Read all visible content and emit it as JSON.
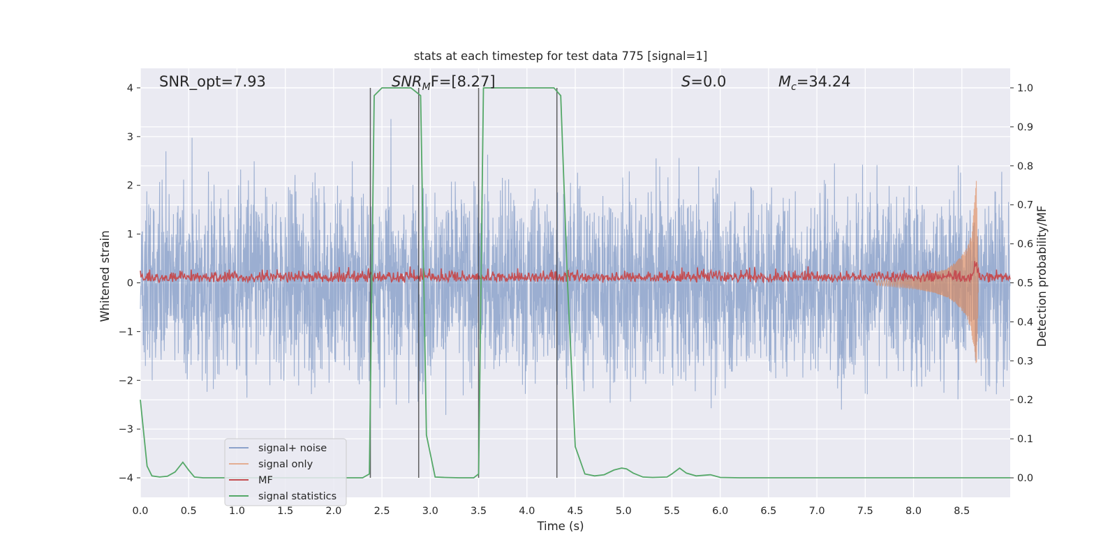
{
  "chart_data": {
    "type": "line",
    "title": "stats at each timestep for test data 775 [signal=1]",
    "xlabel": "Time (s)",
    "ylabel_left": "Whitened strain",
    "ylabel_right": "Detection probability/MF",
    "xlim": [
      0,
      9
    ],
    "ylim_left": [
      -4.4,
      4.4
    ],
    "ylim_right": [
      -0.05,
      1.05
    ],
    "x_ticks": [
      "0.0",
      "0.5",
      "1.0",
      "1.5",
      "2.0",
      "2.5",
      "3.0",
      "3.5",
      "4.0",
      "4.5",
      "5.0",
      "5.5",
      "6.0",
      "6.5",
      "7.0",
      "7.5",
      "8.0",
      "8.5"
    ],
    "y_left_ticks": [
      "4",
      "3",
      "2",
      "1",
      "0",
      "−1",
      "−2",
      "−3",
      "−4"
    ],
    "y_right_ticks": [
      "1.0",
      "0.9",
      "0.8",
      "0.7",
      "0.6",
      "0.5",
      "0.4",
      "0.3",
      "0.2",
      "0.1",
      "0.0"
    ],
    "annotations": {
      "snr_opt": "SNR_opt=7.93",
      "snr_mf_main": "SNR",
      "snr_mf_sub": "M",
      "snr_mf_rest": "F=[8.27]",
      "s_main": "S",
      "s_rest": "=0.0",
      "mc_main": "M",
      "mc_sub": "c",
      "mc_rest": "=34.24"
    },
    "grid": true,
    "legend_placement": "lower-left",
    "series": [
      {
        "name": "signal+ noise",
        "color": "#4c72b0",
        "description_values": "whitened strain, approximately within ±3.5"
      },
      {
        "name": "signal only",
        "color": "#dd8452",
        "x": [
          7.6,
          7.8,
          8.0,
          8.2,
          8.35,
          8.45,
          8.55,
          8.6,
          8.63,
          8.65,
          8.67
        ],
        "amp": [
          0.05,
          0.08,
          0.12,
          0.2,
          0.3,
          0.45,
          0.7,
          1.0,
          1.6,
          2.1,
          0.2
        ]
      },
      {
        "name": "MF",
        "color": "#c44e52",
        "description_values": "right axis, ~0.50 to 0.55"
      },
      {
        "name": "signal statistics",
        "color": "#55a868",
        "x": [
          0.0,
          0.07,
          0.12,
          0.2,
          0.28,
          0.36,
          0.44,
          0.5,
          0.56,
          0.65,
          1.0,
          1.5,
          2.0,
          2.3,
          2.37,
          2.42,
          2.5,
          2.6,
          2.8,
          2.85,
          2.9,
          2.96,
          3.05,
          3.15,
          3.3,
          3.45,
          3.5,
          3.55,
          3.6,
          3.8,
          4.0,
          4.2,
          4.28,
          4.35,
          4.42,
          4.5,
          4.6,
          4.7,
          4.8,
          4.9,
          4.98,
          5.03,
          5.1,
          5.2,
          5.3,
          5.45,
          5.5,
          5.58,
          5.65,
          5.75,
          5.9,
          6.0,
          6.2,
          7.0,
          8.0,
          9.0
        ],
        "y": [
          0.2,
          0.03,
          0.005,
          0.002,
          0.004,
          0.015,
          0.04,
          0.02,
          0.002,
          0.0,
          0.0,
          0.0,
          0.0,
          0.0,
          0.01,
          0.98,
          1.0,
          1.0,
          1.0,
          0.99,
          0.98,
          0.11,
          0.002,
          0.001,
          0.0,
          0.0,
          0.01,
          1.0,
          1.0,
          1.0,
          1.0,
          1.0,
          1.0,
          0.98,
          0.5,
          0.08,
          0.01,
          0.005,
          0.008,
          0.02,
          0.025,
          0.023,
          0.012,
          0.002,
          0.001,
          0.002,
          0.01,
          0.025,
          0.012,
          0.005,
          0.008,
          0.001,
          0.0,
          0.0,
          0.0,
          0.0
        ]
      },
      {
        "name": "vertical markers",
        "color": "#3a3a3a",
        "x": [
          2.38,
          2.88,
          3.5,
          4.31
        ]
      }
    ]
  }
}
